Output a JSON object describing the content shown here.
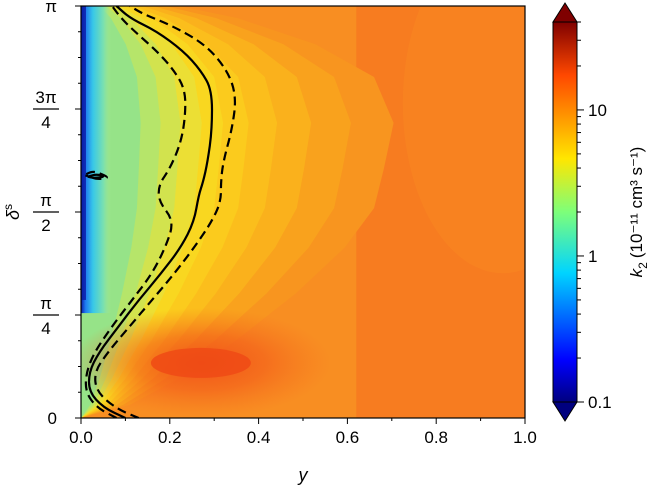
{
  "chart_data": {
    "type": "heatmap",
    "xlabel": "y",
    "ylabel": "δ",
    "ylabel_superscript": "s",
    "xlim": [
      0.0,
      1.0
    ],
    "ylim": [
      0,
      3.14159
    ],
    "x_ticks": [
      0.0,
      0.2,
      0.4,
      0.6,
      0.8,
      1.0
    ],
    "x_tick_labels": [
      "0.0",
      "0.2",
      "0.4",
      "0.6",
      "0.8",
      "1.0"
    ],
    "y_ticks": [
      0,
      0.7854,
      1.5708,
      2.3562,
      3.14159
    ],
    "y_tick_labels": [
      {
        "whole": "0"
      },
      {
        "num": "π",
        "den": "4"
      },
      {
        "num": "π",
        "den": "2"
      },
      {
        "num": "3π",
        "den": "4"
      },
      {
        "whole": "π"
      }
    ],
    "colorbar": {
      "label": "k",
      "label_subscript": "2",
      "label_units": "(10⁻¹¹ cm³ s⁻¹)",
      "scale": "log",
      "range": [
        0.1,
        40
      ],
      "ticks": [
        0.1,
        1,
        10
      ],
      "tick_labels": [
        "0.1",
        "1",
        "10"
      ],
      "colormap": "jet",
      "extend": "both"
    },
    "contour_lines": [
      {
        "style": "solid",
        "points": [
          [
            0.1,
            0.0
          ],
          [
            0.05,
            0.08
          ],
          [
            0.018,
            0.2
          ],
          [
            0.018,
            0.35
          ],
          [
            0.04,
            0.5
          ],
          [
            0.085,
            0.7
          ],
          [
            0.13,
            0.9
          ],
          [
            0.18,
            1.1
          ],
          [
            0.225,
            1.3
          ],
          [
            0.255,
            1.5
          ],
          [
            0.265,
            1.7
          ],
          [
            0.275,
            1.8
          ],
          [
            0.285,
            1.95
          ],
          [
            0.295,
            2.2
          ],
          [
            0.295,
            2.5
          ],
          [
            0.27,
            2.65
          ],
          [
            0.23,
            2.8
          ],
          [
            0.17,
            2.95
          ],
          [
            0.11,
            3.05
          ],
          [
            0.08,
            3.14159
          ]
        ]
      },
      {
        "style": "dashed",
        "points": [
          [
            0.08,
            0.0
          ],
          [
            0.035,
            0.08
          ],
          [
            0.01,
            0.2
          ],
          [
            0.012,
            0.35
          ],
          [
            0.03,
            0.5
          ],
          [
            0.07,
            0.7
          ],
          [
            0.115,
            0.9
          ],
          [
            0.16,
            1.1
          ],
          [
            0.19,
            1.3
          ],
          [
            0.21,
            1.5
          ],
          [
            0.175,
            1.65
          ],
          [
            0.175,
            1.78
          ],
          [
            0.2,
            1.9
          ],
          [
            0.225,
            2.1
          ],
          [
            0.235,
            2.3
          ],
          [
            0.235,
            2.5
          ],
          [
            0.21,
            2.65
          ],
          [
            0.17,
            2.8
          ],
          [
            0.12,
            2.95
          ],
          [
            0.09,
            3.05
          ],
          [
            0.07,
            3.14159
          ]
        ]
      },
      {
        "style": "dashed",
        "points": [
          [
            0.13,
            0.0
          ],
          [
            0.08,
            0.07
          ],
          [
            0.035,
            0.2
          ],
          [
            0.03,
            0.35
          ],
          [
            0.06,
            0.5
          ],
          [
            0.11,
            0.7
          ],
          [
            0.16,
            0.9
          ],
          [
            0.21,
            1.1
          ],
          [
            0.255,
            1.3
          ],
          [
            0.295,
            1.5
          ],
          [
            0.315,
            1.65
          ],
          [
            0.315,
            1.8
          ],
          [
            0.32,
            1.95
          ],
          [
            0.34,
            2.2
          ],
          [
            0.35,
            2.45
          ],
          [
            0.33,
            2.65
          ],
          [
            0.28,
            2.85
          ],
          [
            0.2,
            3.0
          ],
          [
            0.14,
            3.08
          ],
          [
            0.11,
            3.14159
          ]
        ]
      },
      {
        "style": "dashed",
        "points": [
          [
            0.012,
            1.86
          ],
          [
            0.025,
            1.88
          ],
          [
            0.04,
            1.87
          ],
          [
            0.065,
            1.83
          ],
          [
            0.035,
            1.82
          ],
          [
            0.02,
            1.84
          ],
          [
            0.01,
            1.85
          ]
        ]
      },
      {
        "style": "solid",
        "points": [
          [
            0.015,
            1.84
          ],
          [
            0.035,
            1.86
          ],
          [
            0.055,
            1.84
          ],
          [
            0.03,
            1.83
          ],
          [
            0.015,
            1.84
          ]
        ]
      }
    ]
  }
}
